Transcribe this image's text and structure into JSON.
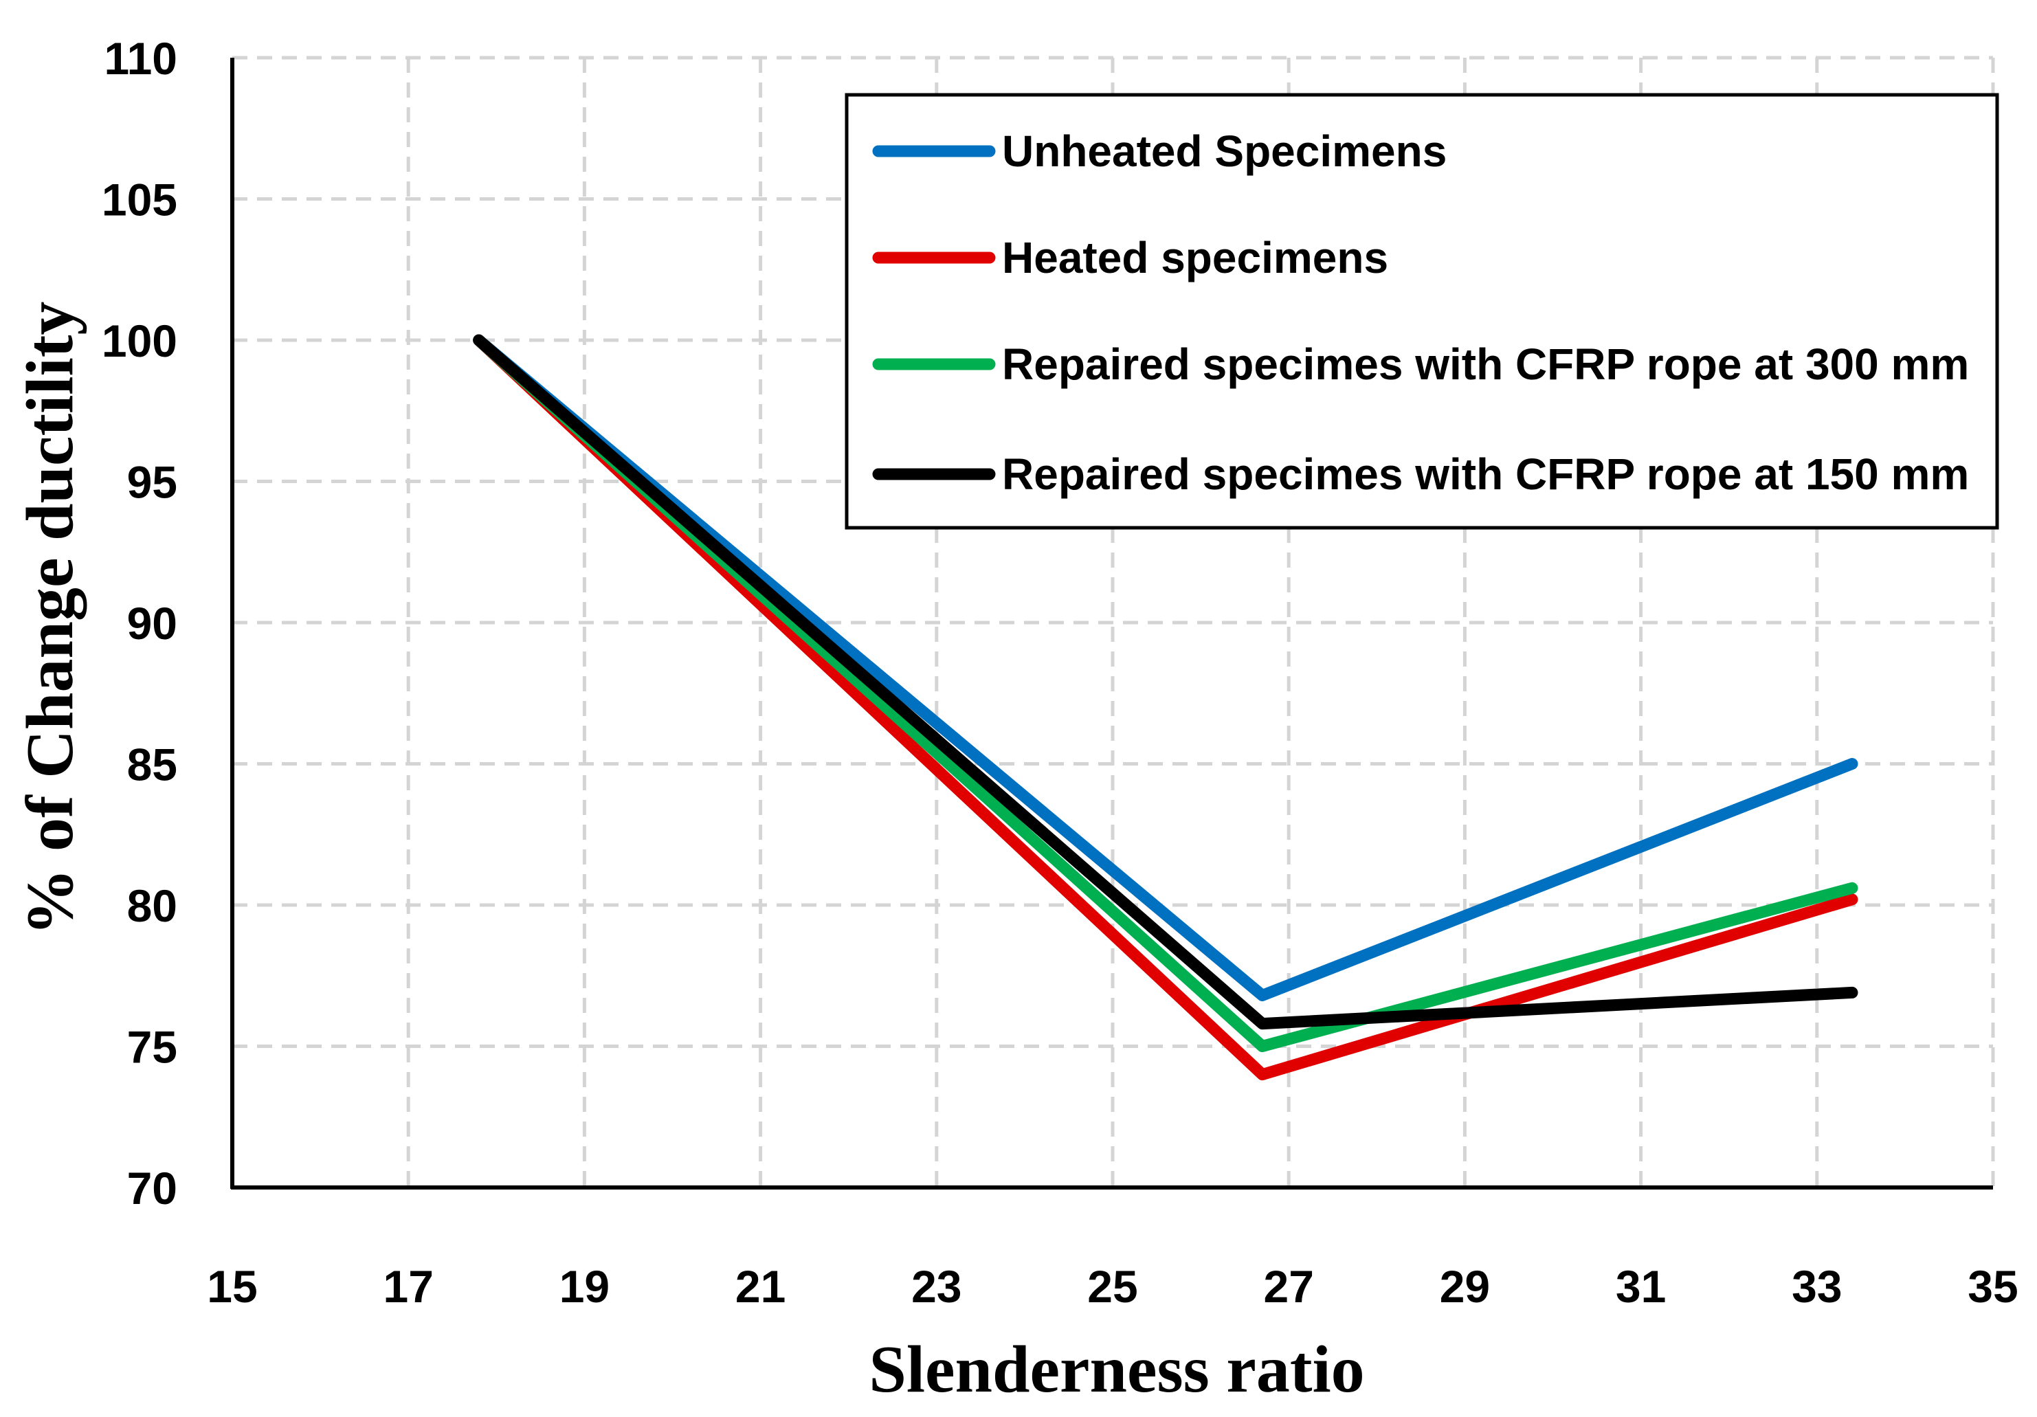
{
  "chart_data": {
    "type": "line",
    "title": "",
    "xlabel": "Slenderness ratio",
    "ylabel": "% of Change ductility",
    "xlim": [
      15,
      35
    ],
    "ylim": [
      70,
      110
    ],
    "xticks": [
      15,
      17,
      19,
      21,
      23,
      25,
      27,
      29,
      31,
      33,
      35
    ],
    "yticks": [
      70,
      75,
      80,
      85,
      90,
      95,
      100,
      105,
      110
    ],
    "grid": true,
    "legend_position": "top-right",
    "x": [
      17.8,
      26.7,
      33.4
    ],
    "series": [
      {
        "name": "Unheated Specimens",
        "color": "#0070C0",
        "values": [
          100,
          76.8,
          85.0
        ]
      },
      {
        "name": "Heated specimens",
        "color": "#E00000",
        "values": [
          100,
          74.0,
          80.2
        ]
      },
      {
        "name": "Repaired specimes with CFRP rope at 300 mm",
        "color": "#00B050",
        "values": [
          100,
          75.0,
          80.6
        ]
      },
      {
        "name": "Repaired specimes with CFRP rope at 150 mm",
        "color": "#000000",
        "values": [
          100,
          75.8,
          76.9
        ]
      }
    ]
  }
}
